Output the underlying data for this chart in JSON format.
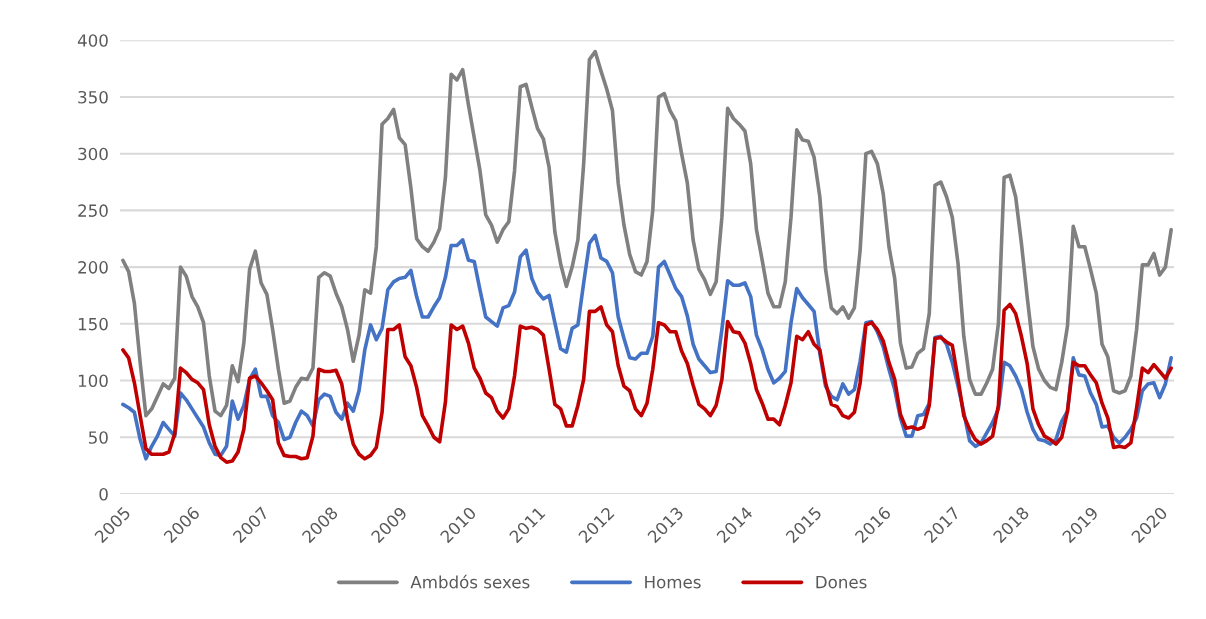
{
  "chart_data": {
    "type": "line",
    "categories": [
      "2005",
      null,
      null,
      null,
      null,
      null,
      null,
      null,
      null,
      null,
      null,
      null,
      "2006",
      null,
      null,
      null,
      null,
      null,
      null,
      null,
      null,
      null,
      null,
      null,
      "2007",
      null,
      null,
      null,
      null,
      null,
      null,
      null,
      null,
      null,
      null,
      null,
      "2008",
      null,
      null,
      null,
      null,
      null,
      null,
      null,
      null,
      null,
      null,
      null,
      "2009",
      null,
      null,
      null,
      null,
      null,
      null,
      null,
      null,
      null,
      null,
      null,
      "2010",
      null,
      null,
      null,
      null,
      null,
      null,
      null,
      null,
      null,
      null,
      null,
      "2011",
      null,
      null,
      null,
      null,
      null,
      null,
      null,
      null,
      null,
      null,
      null,
      "2012",
      null,
      null,
      null,
      null,
      null,
      null,
      null,
      null,
      null,
      null,
      null,
      "2013",
      null,
      null,
      null,
      null,
      null,
      null,
      null,
      null,
      null,
      null,
      null,
      "2014",
      null,
      null,
      null,
      null,
      null,
      null,
      null,
      null,
      null,
      null,
      null,
      "2015",
      null,
      null,
      null,
      null,
      null,
      null,
      null,
      null,
      null,
      null,
      null,
      "2016",
      null,
      null,
      null,
      null,
      null,
      null,
      null,
      null,
      null,
      null,
      null,
      "2017",
      null,
      null,
      null,
      null,
      null,
      null,
      null,
      null,
      null,
      null,
      null,
      "2018",
      null,
      null,
      null,
      null,
      null,
      null,
      null,
      null,
      null,
      null,
      null,
      "2019",
      null,
      null,
      null,
      null,
      null,
      null,
      null,
      null,
      null,
      null,
      null,
      "2020",
      null,
      null
    ],
    "series": [
      {
        "name": "Ambdós sexes",
        "color": "#808080",
        "values": [
          206,
          196,
          168,
          116,
          69,
          75,
          86,
          97,
          93,
          102,
          200,
          192,
          174,
          165,
          151,
          104,
          73,
          69,
          78,
          113,
          99,
          133,
          198,
          214,
          186,
          176,
          145,
          110,
          80,
          82,
          94,
          102,
          101,
          111,
          191,
          195,
          192,
          177,
          165,
          145,
          117,
          140,
          180,
          177,
          218,
          326,
          331,
          339,
          314,
          308,
          270,
          225,
          218,
          214,
          222,
          234,
          279,
          370,
          365,
          374,
          343,
          314,
          285,
          246,
          237,
          222,
          233,
          240,
          285,
          359,
          361,
          341,
          322,
          313,
          288,
          231,
          203,
          183,
          200,
          224,
          291,
          383,
          390,
          373,
          357,
          338,
          274,
          237,
          211,
          196,
          193,
          205,
          250,
          350,
          353,
          338,
          329,
          300,
          274,
          224,
          198,
          189,
          176,
          187,
          244,
          340,
          331,
          326,
          320,
          291,
          233,
          206,
          177,
          165,
          165,
          187,
          244,
          321,
          312,
          311,
          297,
          262,
          198,
          164,
          159,
          165,
          155,
          164,
          215,
          300,
          302,
          291,
          265,
          218,
          190,
          133,
          111,
          112,
          124,
          128,
          159,
          272,
          275,
          262,
          244,
          203,
          139,
          101,
          88,
          88,
          98,
          110,
          150,
          279,
          281,
          262,
          221,
          174,
          130,
          110,
          100,
          94,
          92,
          116,
          148,
          236,
          218,
          218,
          198,
          177,
          132,
          121,
          91,
          89,
          91,
          104,
          145,
          202,
          202,
          212,
          193,
          200,
          233
        ]
      },
      {
        "name": "Homes",
        "color": "#4472c4",
        "values": [
          79,
          76,
          72,
          48,
          31,
          42,
          51,
          63,
          57,
          51,
          89,
          83,
          75,
          67,
          59,
          45,
          35,
          34,
          42,
          82,
          66,
          78,
          101,
          110,
          86,
          86,
          69,
          63,
          48,
          50,
          63,
          73,
          69,
          60,
          83,
          88,
          86,
          72,
          66,
          80,
          73,
          91,
          127,
          149,
          136,
          146,
          180,
          187,
          190,
          191,
          197,
          174,
          156,
          156,
          165,
          173,
          191,
          219,
          219,
          224,
          206,
          205,
          180,
          156,
          152,
          148,
          164,
          166,
          178,
          209,
          215,
          190,
          178,
          172,
          175,
          151,
          128,
          125,
          146,
          149,
          186,
          221,
          228,
          208,
          205,
          195,
          156,
          137,
          120,
          119,
          124,
          124,
          139,
          200,
          205,
          193,
          181,
          174,
          157,
          132,
          119,
          113,
          107,
          108,
          145,
          188,
          184,
          184,
          186,
          174,
          140,
          127,
          110,
          98,
          102,
          108,
          151,
          181,
          173,
          167,
          161,
          124,
          95,
          86,
          83,
          97,
          88,
          92,
          117,
          151,
          152,
          143,
          130,
          110,
          92,
          67,
          51,
          51,
          69,
          70,
          80,
          138,
          139,
          132,
          116,
          95,
          72,
          47,
          42,
          45,
          54,
          63,
          75,
          116,
          113,
          104,
          92,
          72,
          57,
          48,
          47,
          44,
          48,
          64,
          73,
          120,
          105,
          104,
          89,
          79,
          59,
          60,
          50,
          45,
          50,
          57,
          67,
          91,
          97,
          98,
          85,
          97,
          120
        ]
      },
      {
        "name": "Dones",
        "color": "#c00000",
        "values": [
          127,
          120,
          98,
          69,
          40,
          35,
          35,
          35,
          37,
          53,
          111,
          107,
          101,
          98,
          92,
          61,
          42,
          32,
          28,
          29,
          37,
          57,
          102,
          104,
          98,
          91,
          83,
          45,
          34,
          33,
          33,
          31,
          32,
          51,
          110,
          108,
          108,
          109,
          97,
          66,
          44,
          35,
          31,
          34,
          41,
          72,
          145,
          145,
          149,
          121,
          113,
          94,
          69,
          60,
          50,
          46,
          81,
          149,
          145,
          148,
          133,
          111,
          102,
          89,
          85,
          73,
          67,
          75,
          104,
          148,
          146,
          147,
          145,
          140,
          110,
          79,
          75,
          60,
          60,
          78,
          101,
          161,
          161,
          165,
          149,
          143,
          113,
          95,
          91,
          75,
          69,
          80,
          110,
          151,
          149,
          143,
          143,
          126,
          115,
          96,
          79,
          75,
          69,
          78,
          101,
          152,
          143,
          142,
          133,
          115,
          92,
          80,
          66,
          66,
          61,
          78,
          98,
          139,
          136,
          143,
          132,
          127,
          98,
          79,
          77,
          69,
          67,
          72,
          98,
          149,
          151,
          145,
          135,
          116,
          101,
          70,
          58,
          59,
          57,
          59,
          78,
          137,
          138,
          134,
          131,
          101,
          69,
          57,
          48,
          44,
          47,
          51,
          78,
          162,
          167,
          159,
          139,
          115,
          75,
          61,
          51,
          48,
          44,
          50,
          73,
          116,
          113,
          113,
          105,
          98,
          80,
          67,
          41,
          42,
          41,
          45,
          76,
          111,
          107,
          114,
          108,
          102,
          111
        ]
      }
    ],
    "ylim": [
      0,
      400
    ],
    "yticks": [
      0,
      50,
      100,
      150,
      200,
      250,
      300,
      350,
      400
    ],
    "grid": "y",
    "legend": "bottom"
  }
}
